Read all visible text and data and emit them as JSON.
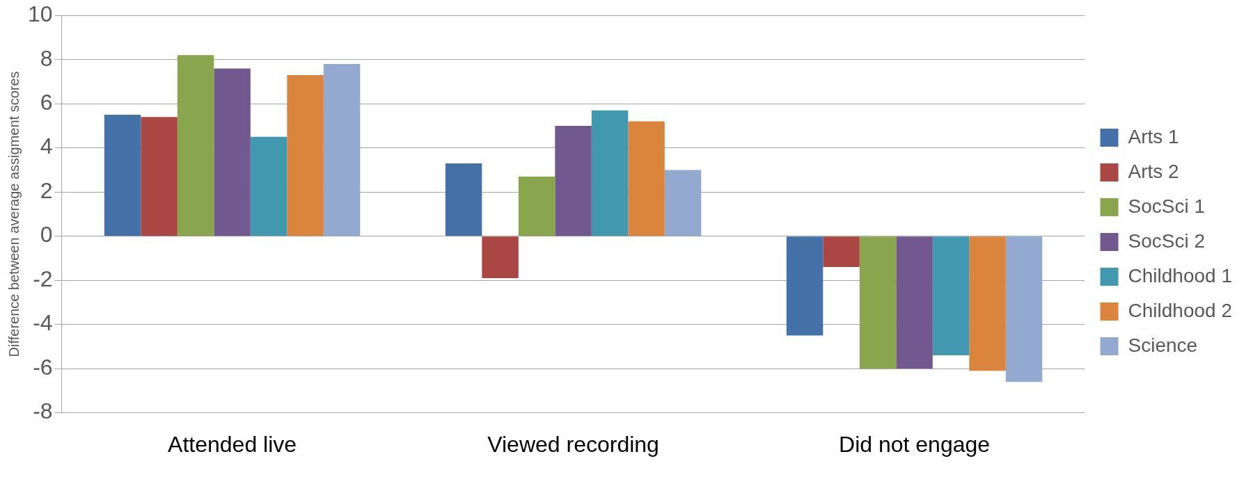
{
  "chart_data": {
    "type": "bar",
    "ylabel": "Difference between average assigment scores",
    "categories": [
      "Attended live",
      "Viewed recording",
      "Did not engage"
    ],
    "series": [
      {
        "name": "Arts 1",
        "color": "#4472a8",
        "values": [
          5.5,
          3.3,
          -4.5
        ]
      },
      {
        "name": "Arts 2",
        "color": "#aa4644",
        "values": [
          5.4,
          -1.9,
          -1.4
        ]
      },
      {
        "name": "SocSci 1",
        "color": "#89a54e",
        "values": [
          8.2,
          2.7,
          -6.0
        ]
      },
      {
        "name": "SocSci 2",
        "color": "#71588f",
        "values": [
          7.6,
          5.0,
          -6.0
        ]
      },
      {
        "name": "Childhood 1",
        "color": "#4198af",
        "values": [
          4.5,
          5.7,
          -5.4
        ]
      },
      {
        "name": "Childhood 2",
        "color": "#db843d",
        "values": [
          7.3,
          5.2,
          -6.1
        ]
      },
      {
        "name": "Science",
        "color": "#93a9cf",
        "values": [
          7.8,
          3.0,
          -6.6
        ]
      }
    ],
    "ylim": [
      -8,
      10
    ],
    "yticks": [
      -8,
      -6,
      -4,
      -2,
      0,
      2,
      4,
      6,
      8,
      10
    ],
    "grid": "y",
    "legend": "right"
  }
}
